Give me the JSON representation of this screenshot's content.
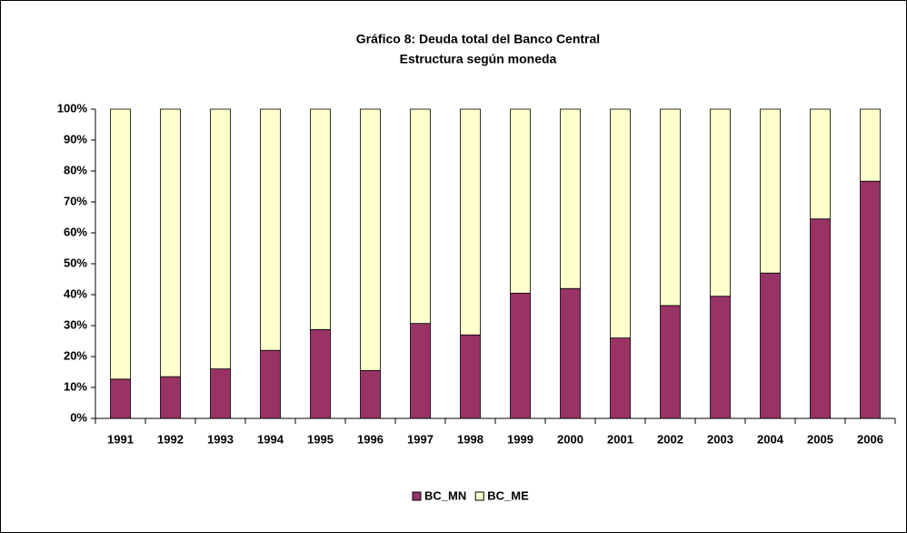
{
  "chart_data": {
    "type": "stacked_bar_100",
    "title": [
      "Gráfico 8:  Deuda total del Banco Central",
      "Estructura según moneda"
    ],
    "categories": [
      "1991",
      "1992",
      "1993",
      "1994",
      "1995",
      "1996",
      "1997",
      "1998",
      "1999",
      "2000",
      "2001",
      "2002",
      "2003",
      "2004",
      "2005",
      "2006"
    ],
    "series": [
      {
        "name": "BC_MN",
        "color": "#993366",
        "values": [
          12.7,
          13.5,
          16,
          22,
          28.7,
          15.5,
          30.7,
          27,
          40.5,
          42,
          26,
          36.5,
          39.5,
          47,
          64.5,
          76.7
        ]
      },
      {
        "name": "BC_ME",
        "color": "#FFFFCC",
        "values": [
          87.3,
          86.5,
          84,
          78,
          71.3,
          84.5,
          69.3,
          73,
          59.5,
          58,
          74,
          63.5,
          60.5,
          53,
          35.5,
          23.3
        ]
      }
    ],
    "ylim": [
      0,
      100
    ],
    "yticks": [
      {
        "value": 0,
        "label": "0%"
      },
      {
        "value": 10,
        "label": "10%"
      },
      {
        "value": 20,
        "label": "20%"
      },
      {
        "value": 30,
        "label": "30%"
      },
      {
        "value": 40,
        "label": "40%"
      },
      {
        "value": 50,
        "label": "50%"
      },
      {
        "value": 60,
        "label": "60%"
      },
      {
        "value": 70,
        "label": "70%"
      },
      {
        "value": 80,
        "label": "80%"
      },
      {
        "value": 90,
        "label": "90%"
      },
      {
        "value": 100,
        "label": "100%"
      }
    ],
    "legend": "bottom"
  }
}
